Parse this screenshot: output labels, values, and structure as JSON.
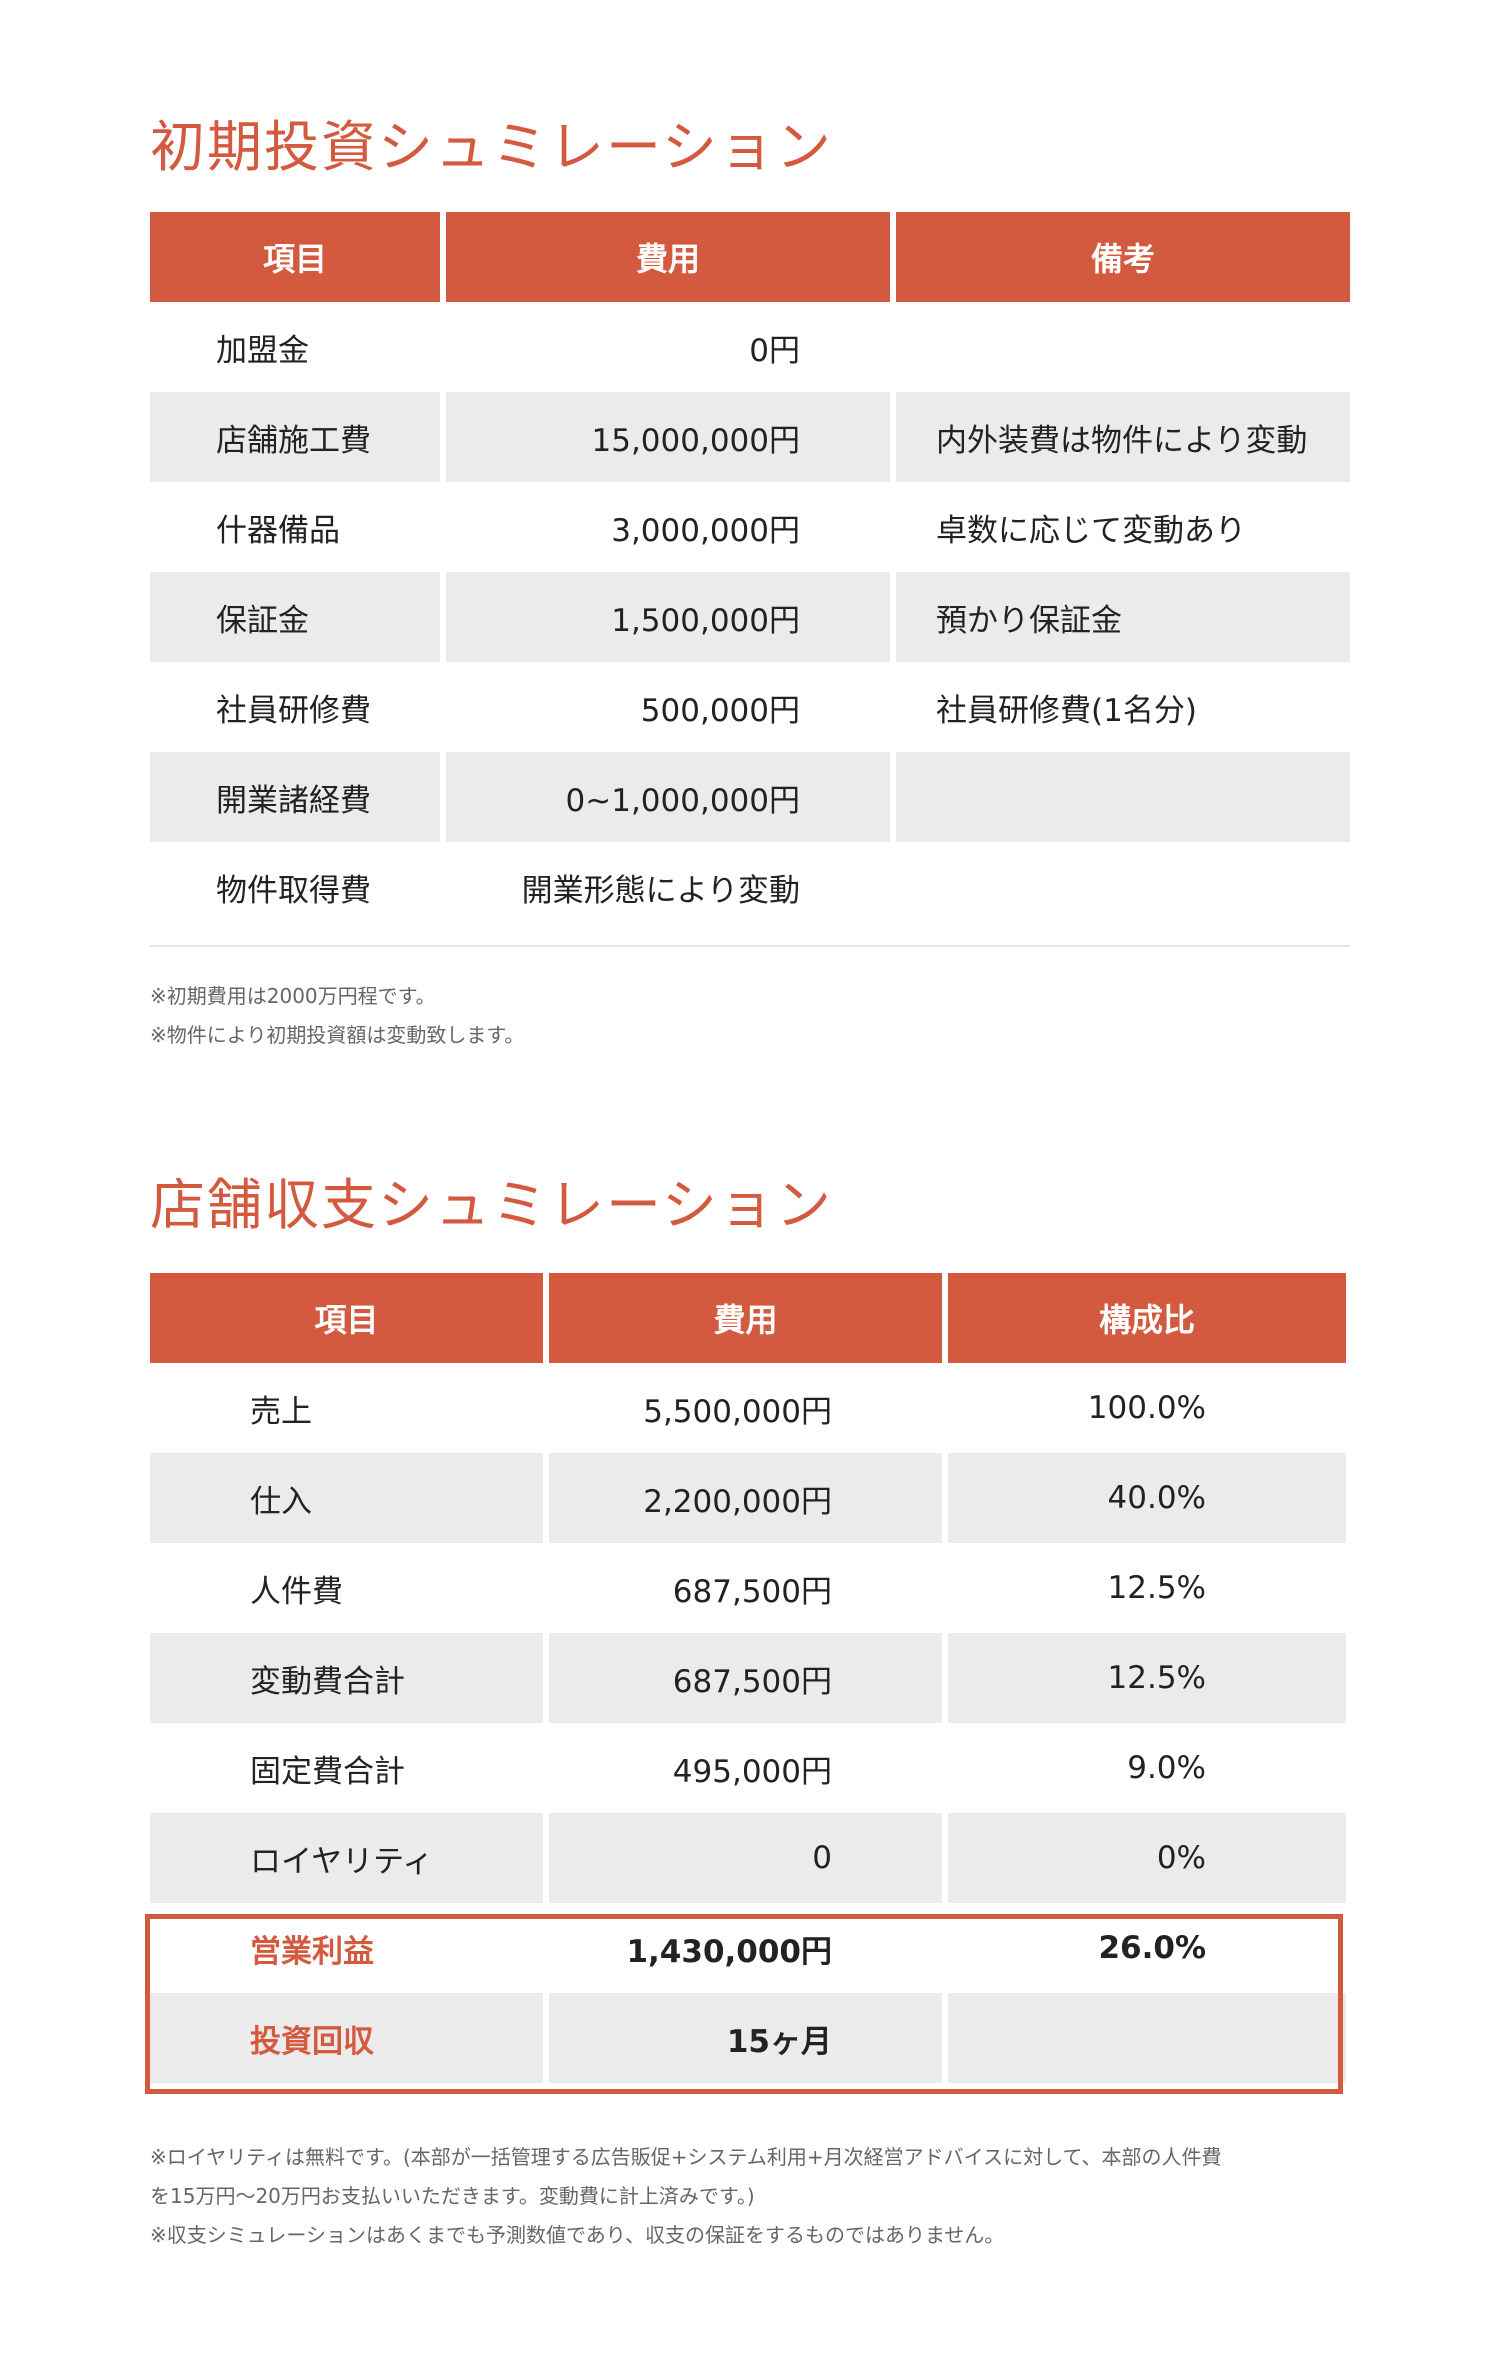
{
  "section1": {
    "title": "初期投資シュミレーション",
    "headers": [
      "項目",
      "費用",
      "備考"
    ],
    "rows": [
      {
        "item": "加盟金",
        "cost": "0円",
        "note": ""
      },
      {
        "item": "店舗施工費",
        "cost": "15,000,000円",
        "note": "内外装費は物件により変動"
      },
      {
        "item": "什器備品",
        "cost": "3,000,000円",
        "note": "卓数に応じて変動あり"
      },
      {
        "item": "保証金",
        "cost": "1,500,000円",
        "note": "預かり保証金"
      },
      {
        "item": "社員研修費",
        "cost": "500,000円",
        "note": "社員研修費(1名分)"
      },
      {
        "item": "開業諸経費",
        "cost": "0~1,000,000円",
        "note": ""
      },
      {
        "item": "物件取得費",
        "cost": "開業形態により変動",
        "note": ""
      }
    ],
    "notes": [
      "※初期費用は2000万円程です。",
      "※物件により初期投資額は変動致します。"
    ]
  },
  "section2": {
    "title": "店舗収支シュミレーション",
    "headers": [
      "項目",
      "費用",
      "構成比"
    ],
    "rows": [
      {
        "item": "売上",
        "cost": "5,500,000円",
        "ratio": "100.0%"
      },
      {
        "item": "仕入",
        "cost": "2,200,000円",
        "ratio": "40.0%"
      },
      {
        "item": "人件費",
        "cost": "687,500円",
        "ratio": "12.5%"
      },
      {
        "item": "変動費合計",
        "cost": "687,500円",
        "ratio": "12.5%"
      },
      {
        "item": "固定費合計",
        "cost": "495,000円",
        "ratio": "9.0%"
      },
      {
        "item": "ロイヤリティ",
        "cost": "0",
        "ratio": "0%"
      }
    ],
    "highlight_rows": [
      {
        "item": "営業利益",
        "cost": "1,430,000円",
        "ratio": "26.0%"
      },
      {
        "item": "投資回収",
        "cost": "15ヶ月",
        "ratio": ""
      }
    ],
    "notes": [
      "※ロイヤリティは無料です。(本部が一括管理する広告販促+システム利用+月次経営アドバイスに対して、本部の人件費",
      "を15万円〜20万円お支払いいただきます。変動費に計上済みです。)",
      "※収支シミュレーションはあくまでも予測数値であり、収支の保証をするものではありません。"
    ]
  },
  "colors": {
    "accent": "#d35a3f",
    "row_shade": "#ebebeb",
    "text": "#222222",
    "note_text": "#666666"
  }
}
